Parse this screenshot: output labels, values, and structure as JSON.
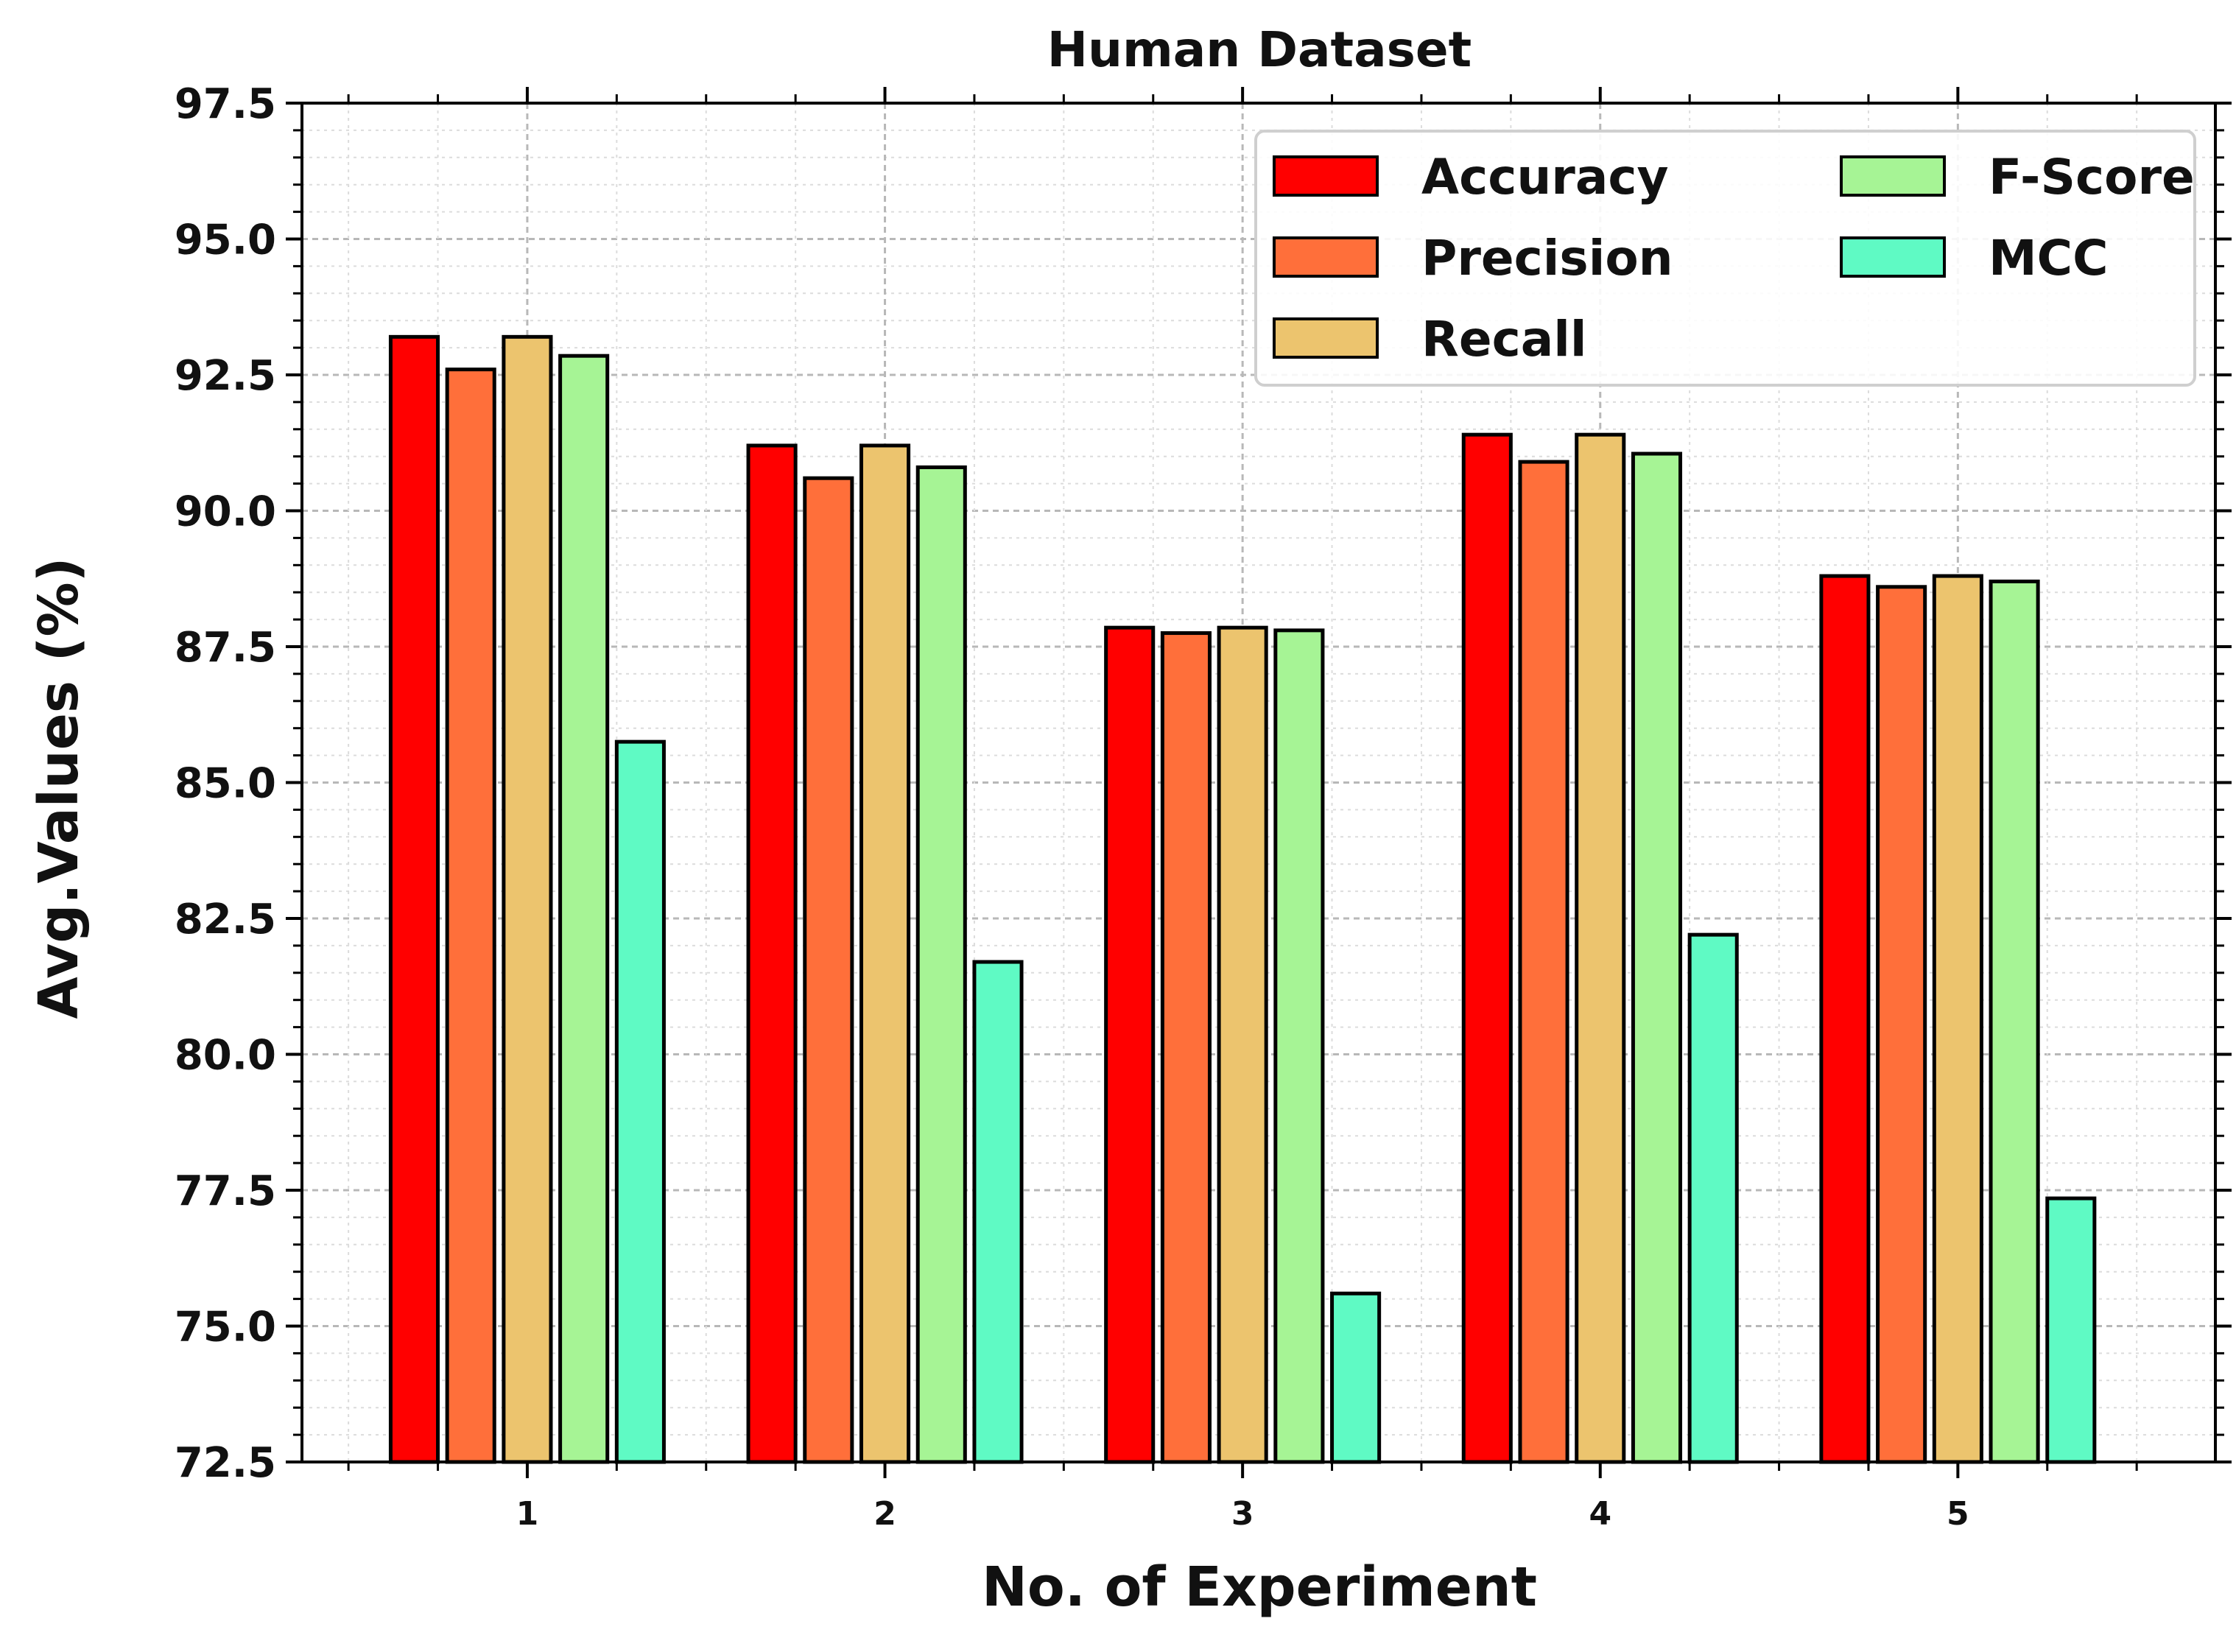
{
  "chart_data": {
    "type": "bar",
    "title": "Human Dataset",
    "xlabel": "No. of Experiment",
    "ylabel": "Avg.Values (%)",
    "ylim": [
      72.5,
      97.5
    ],
    "yticks": [
      "72.5",
      "75.0",
      "77.5",
      "80.0",
      "82.5",
      "85.0",
      "87.5",
      "90.0",
      "92.5",
      "95.0",
      "97.5"
    ],
    "categories": [
      "1",
      "2",
      "3",
      "4",
      "5"
    ],
    "grid": true,
    "legend_position": "top-right",
    "series": [
      {
        "name": "Accuracy",
        "color": "#ff0000",
        "values": [
          93.2,
          91.2,
          87.85,
          91.4,
          88.8
        ]
      },
      {
        "name": "Precision",
        "color": "#ff6f3a",
        "values": [
          92.6,
          90.6,
          87.75,
          90.9,
          88.6
        ]
      },
      {
        "name": "Recall",
        "color": "#ecc46e",
        "values": [
          93.2,
          91.2,
          87.85,
          91.4,
          88.8
        ]
      },
      {
        "name": "F-Score",
        "color": "#a6f495",
        "values": [
          92.85,
          90.8,
          87.8,
          91.05,
          88.7
        ]
      },
      {
        "name": "MCC",
        "color": "#5ffac4",
        "values": [
          85.75,
          81.7,
          75.6,
          82.2,
          77.35
        ]
      }
    ]
  }
}
